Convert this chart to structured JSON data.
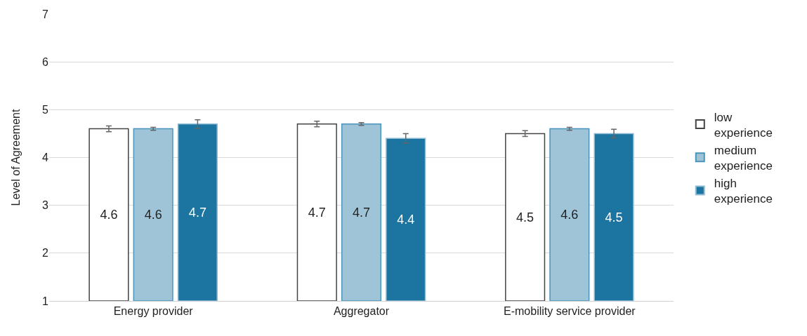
{
  "chart_data": {
    "type": "bar",
    "ylabel": "Level of Agreement",
    "categories": [
      "Energy provider",
      "Aggregator",
      "E-mobility service provider"
    ],
    "series": [
      {
        "name": "low experience",
        "color": "#ffffff",
        "values": [
          4.6,
          4.7,
          4.5
        ],
        "errors": [
          0.06,
          0.06,
          0.06
        ]
      },
      {
        "name": "medium experience",
        "color": "#9fc4d8",
        "values": [
          4.6,
          4.7,
          4.6
        ],
        "errors": [
          0.03,
          0.03,
          0.03
        ]
      },
      {
        "name": "high experience",
        "color": "#1b75a0",
        "values": [
          4.7,
          4.4,
          4.5
        ],
        "errors": [
          0.09,
          0.1,
          0.09
        ]
      }
    ],
    "ylim": [
      1,
      7
    ],
    "yticks": [
      1,
      2,
      3,
      4,
      5,
      6,
      7
    ],
    "grid": "y",
    "legend": "right",
    "data_labels": true
  }
}
